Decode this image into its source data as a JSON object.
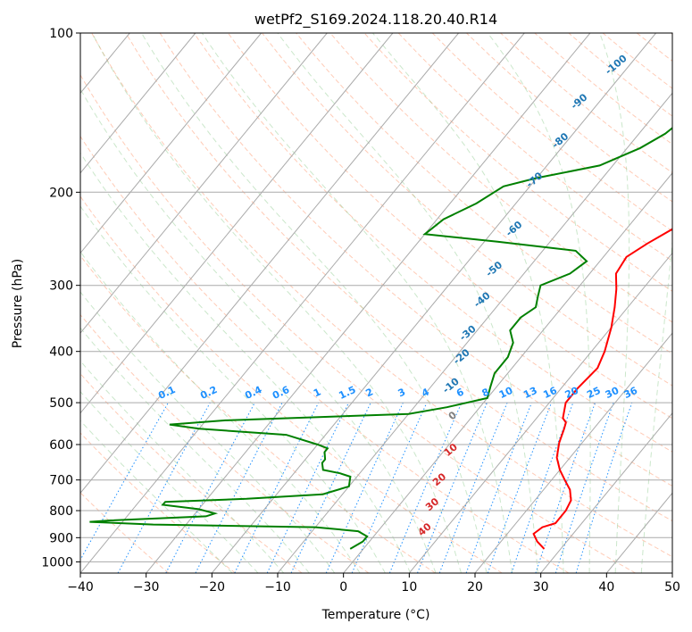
{
  "chart_data": {
    "type": "line",
    "title": "wetPf2_S169.2024.118.20.40.R14",
    "xlabel": "Temperature (°C)",
    "ylabel": "Pressure (hPa)",
    "xlim": [
      -40,
      50
    ],
    "ylim": [
      1050,
      100
    ],
    "y_scale": "log",
    "grid": true,
    "x_ticks": [
      -40,
      -30,
      -20,
      -10,
      0,
      10,
      20,
      30,
      40,
      50
    ],
    "y_ticks": [
      100,
      200,
      300,
      400,
      500,
      600,
      700,
      800,
      900,
      1000
    ],
    "skew_t": true,
    "series": [
      {
        "color": "#ff0000",
        "points": [
          [
            27.5,
            945
          ],
          [
            25.5,
            915
          ],
          [
            24,
            885
          ],
          [
            24.5,
            860
          ],
          [
            26,
            845
          ],
          [
            26,
            800
          ],
          [
            25.5,
            765
          ],
          [
            24,
            730
          ],
          [
            22,
            700
          ],
          [
            20,
            670
          ],
          [
            18,
            635
          ],
          [
            16.5,
            595
          ],
          [
            15.5,
            560
          ],
          [
            15,
            545
          ],
          [
            14,
            535
          ],
          [
            12.5,
            500
          ],
          [
            12.5,
            470
          ],
          [
            13,
            430
          ],
          [
            12,
            400
          ],
          [
            10,
            360
          ],
          [
            8,
            330
          ],
          [
            6,
            305
          ],
          [
            4,
            285
          ],
          [
            3.5,
            265
          ],
          [
            5,
            250
          ],
          [
            7,
            235
          ],
          [
            9,
            220
          ],
          [
            10.5,
            200
          ],
          [
            10,
            180
          ],
          [
            7.5,
            160
          ],
          [
            5.5,
            145
          ],
          [
            5.5,
            130
          ],
          [
            6,
            118
          ],
          [
            7.5,
            110
          ],
          [
            8.5,
            100
          ]
        ]
      },
      {
        "color": "#008000",
        "points": [
          [
            -2,
            945
          ],
          [
            -1,
            915
          ],
          [
            -1,
            895
          ],
          [
            -3,
            875
          ],
          [
            -10,
            860
          ],
          [
            -35,
            850
          ],
          [
            -45,
            840
          ],
          [
            -42,
            835
          ],
          [
            -28,
            820
          ],
          [
            -27,
            810
          ],
          [
            -30,
            795
          ],
          [
            -36,
            780
          ],
          [
            -36,
            770
          ],
          [
            -24,
            760
          ],
          [
            -13,
            745
          ],
          [
            -10,
            720
          ],
          [
            -11,
            690
          ],
          [
            -13,
            680
          ],
          [
            -16,
            670
          ],
          [
            -17,
            650
          ],
          [
            -17,
            640
          ],
          [
            -18,
            620
          ],
          [
            -18,
            610
          ],
          [
            -20,
            600
          ],
          [
            -26,
            575
          ],
          [
            -40,
            560
          ],
          [
            -45,
            550
          ],
          [
            -37,
            540
          ],
          [
            -10,
            525
          ],
          [
            -5,
            510
          ],
          [
            0,
            490
          ],
          [
            -1,
            465
          ],
          [
            -2,
            440
          ],
          [
            -2,
            410
          ],
          [
            -3,
            385
          ],
          [
            -5,
            365
          ],
          [
            -5,
            345
          ],
          [
            -4,
            330
          ],
          [
            -5,
            315
          ],
          [
            -6,
            300
          ],
          [
            -3,
            285
          ],
          [
            -2,
            270
          ],
          [
            -5,
            258
          ],
          [
            -18,
            248
          ],
          [
            -30,
            240
          ],
          [
            -29,
            225
          ],
          [
            -26,
            210
          ],
          [
            -24,
            195
          ],
          [
            -20,
            188
          ],
          [
            -12,
            178
          ],
          [
            -8,
            165
          ],
          [
            -6,
            155
          ],
          [
            -5,
            145
          ],
          [
            -3,
            135
          ],
          [
            -2,
            125
          ],
          [
            -1,
            118
          ],
          [
            0,
            110
          ],
          [
            2,
            100
          ]
        ]
      }
    ],
    "dry_adiabat_labels": [
      "-100",
      "-90",
      "-80",
      "-70",
      "-60",
      "-50",
      "-40",
      "-30",
      "-20",
      "-10",
      "0",
      "10",
      "20",
      "30",
      "40"
    ],
    "mixing_ratio_labels": [
      "0.1",
      "0.2",
      "0.4",
      "0.6",
      "1",
      "1.5",
      "2",
      "3",
      "4",
      "6",
      "8",
      "10",
      "13",
      "16",
      "20",
      "25",
      "30",
      "36"
    ]
  },
  "label_colors": {
    "dry_adiabat_cold": "#1f77b4",
    "dry_adiabat_warm": "#d62728",
    "dry_adiabat_zero": "#7f7f7f",
    "mixing_ratio": "#1e90ff"
  }
}
